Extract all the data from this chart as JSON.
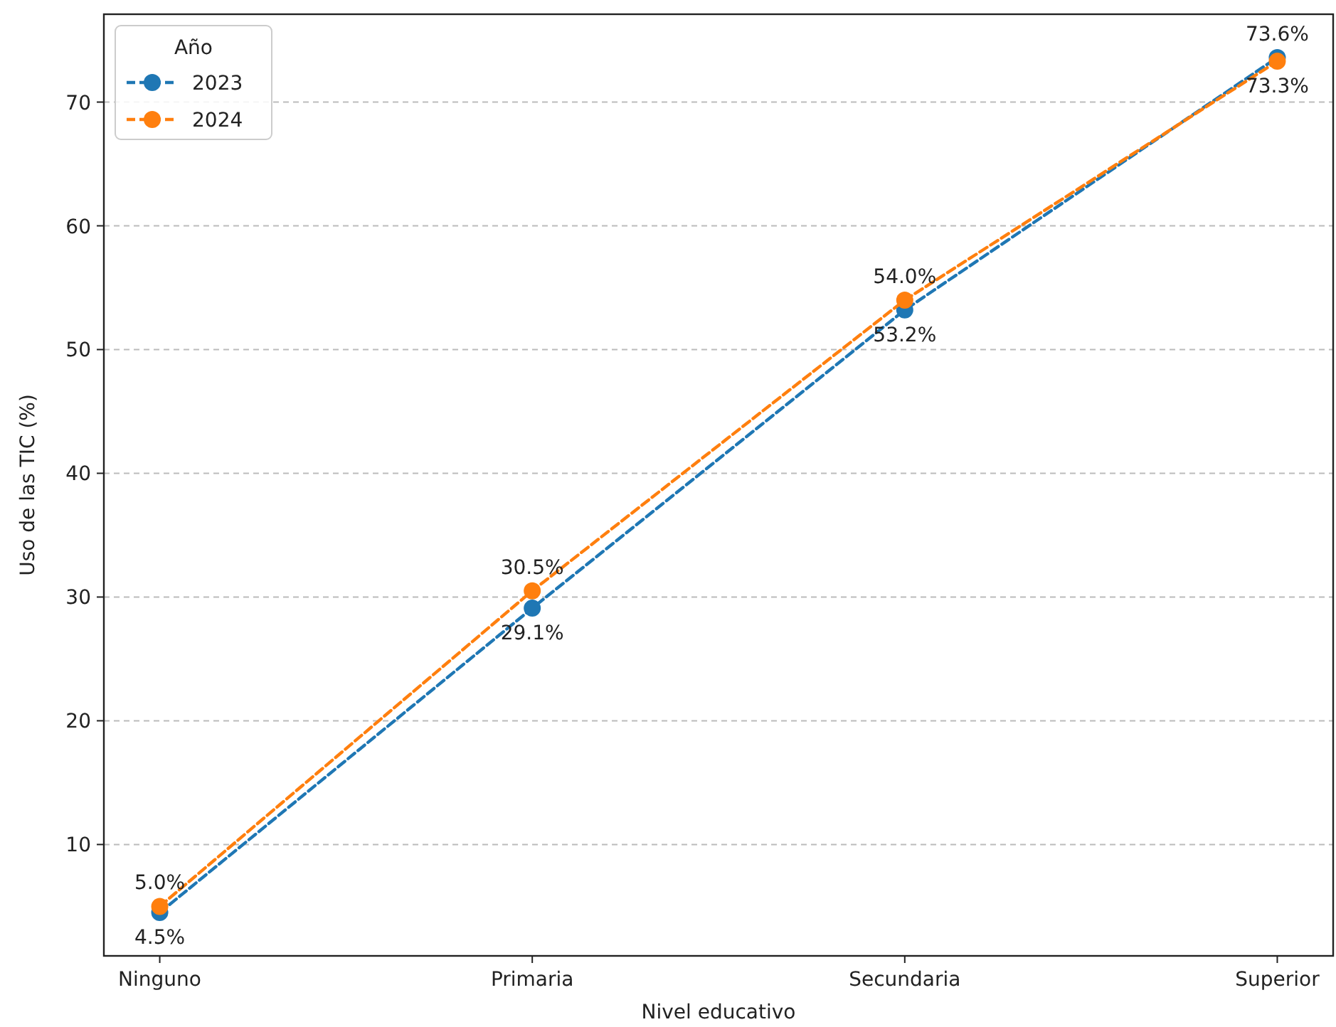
{
  "chart_data": {
    "type": "line",
    "xlabel": "Nivel educativo",
    "ylabel": "Uso de las TIC (%)",
    "legend_title": "Año",
    "legend": "top left",
    "grid": "y",
    "marker": "circle",
    "line_style": "dashed",
    "categories": [
      "Ninguno",
      "Primaria",
      "Secundaria",
      "Superior"
    ],
    "ylim": [
      1.0,
      77.1
    ],
    "yticks": [
      10,
      20,
      30,
      40,
      50,
      60,
      70
    ],
    "series": [
      {
        "name": "2023",
        "color": "#1f77b4",
        "values": [
          4.5,
          29.1,
          53.2,
          73.6
        ],
        "value_labels": [
          "4.5%",
          "29.1%",
          "53.2%",
          "73.6%"
        ]
      },
      {
        "name": "2024",
        "color": "#ff7f0e",
        "values": [
          5.0,
          30.5,
          54.0,
          73.3
        ],
        "value_labels": [
          "5.0%",
          "30.5%",
          "54.0%",
          "73.3%"
        ]
      }
    ]
  }
}
